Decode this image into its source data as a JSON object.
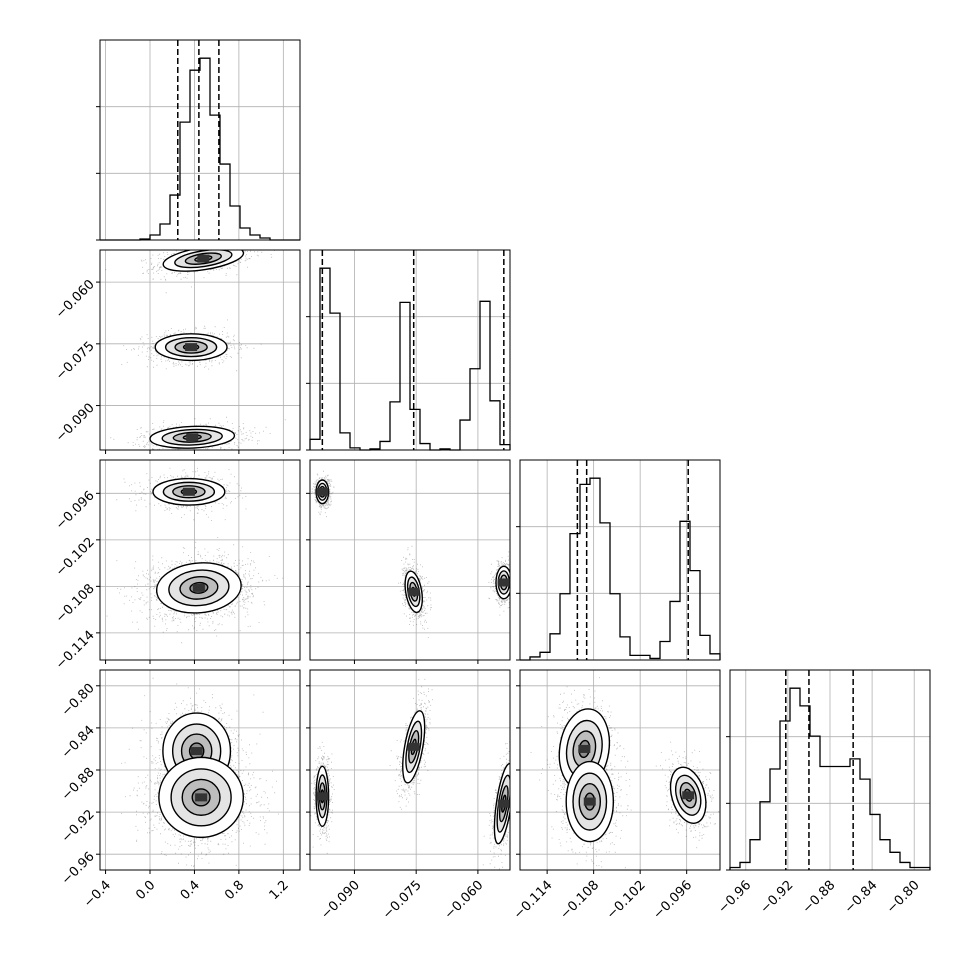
{
  "chart_data": {
    "type": "corner",
    "grid": true,
    "quantile_line_style": "dashed",
    "parameters": [
      {
        "range": [
          -0.45,
          1.35
        ],
        "ticks": [
          -0.4,
          0.0,
          0.4,
          0.8,
          1.2
        ],
        "tick_labels": [
          "−0.4",
          "0.0",
          "0.4",
          "0.8",
          "1.2"
        ],
        "quantiles": [
          0.25,
          0.44,
          0.62
        ],
        "histogram": {
          "edges_start": -0.45,
          "bin_width": 0.09,
          "counts": [
            0,
            0,
            0,
            0,
            1,
            5,
            16,
            45,
            118,
            170,
            182,
            125,
            76,
            34,
            12,
            5,
            2,
            0,
            0,
            0
          ]
        }
      },
      {
        "range": [
          -0.1008,
          -0.0522
        ],
        "ticks": [
          -0.09,
          -0.075,
          -0.06
        ],
        "tick_labels": [
          "−0.090",
          "−0.075",
          "−0.060"
        ],
        "quantiles": [
          -0.0978,
          -0.0756,
          -0.0537
        ],
        "histogram": {
          "edges_start": -0.1008,
          "bin_width": 0.00243,
          "counts": [
            10,
            170,
            128,
            16,
            2,
            0,
            1,
            8,
            45,
            138,
            38,
            6,
            0,
            1,
            0,
            28,
            76,
            139,
            46,
            5
          ]
        }
      },
      {
        "range": [
          -0.1175,
          -0.0917
        ],
        "ticks": [
          -0.114,
          -0.108,
          -0.102,
          -0.096
        ],
        "tick_labels": [
          "−0.114",
          "−0.108",
          "−0.102",
          "−0.096"
        ],
        "quantiles": [
          -0.1101,
          -0.1089,
          -0.0958
        ],
        "histogram": {
          "edges_start": -0.1175,
          "bin_width": 0.00129,
          "counts": [
            0,
            2,
            5,
            17,
            43,
            82,
            114,
            118,
            89,
            43,
            15,
            3,
            3,
            1,
            12,
            38,
            90,
            58,
            16,
            4
          ]
        }
      },
      {
        "range": [
          -0.975,
          -0.785
        ],
        "ticks": [
          -0.96,
          -0.92,
          -0.88,
          -0.84,
          -0.8
        ],
        "tick_labels": [
          "−0.96",
          "−0.92",
          "−0.88",
          "−0.84",
          "−0.80"
        ],
        "quantiles": [
          -0.922,
          -0.9,
          -0.858
        ],
        "histogram": {
          "edges_start": -0.975,
          "bin_width": 0.0095,
          "counts": [
            1,
            3,
            12,
            27,
            40,
            59,
            72,
            65,
            53,
            41,
            41,
            41,
            44,
            36,
            22,
            12,
            7,
            3,
            1,
            1
          ]
        }
      }
    ],
    "modes": {
      "p1_p2": [
        {
          "center": [
            0.48,
            -0.0543
          ],
          "sd": [
            0.19,
            0.0016
          ],
          "rho": 0.45,
          "weight": 0.33
        },
        {
          "center": [
            0.37,
            -0.0758
          ],
          "sd": [
            0.17,
            0.0017
          ],
          "rho": 0.0,
          "weight": 0.33
        },
        {
          "center": [
            0.38,
            -0.0977
          ],
          "sd": [
            0.2,
            0.0014
          ],
          "rho": 0.15,
          "weight": 0.34
        }
      ],
      "p2_p3": [
        {
          "center": [
            -0.0978,
            -0.0958
          ],
          "sd": [
            0.0008,
            0.0008
          ],
          "rho": 0.0,
          "weight": 0.3
        },
        {
          "center": [
            -0.0756,
            -0.1087
          ],
          "sd": [
            0.0011,
            0.0014
          ],
          "rho": -0.35,
          "weight": 0.37
        },
        {
          "center": [
            -0.0537,
            -0.1075
          ],
          "sd": [
            0.001,
            0.0011
          ],
          "rho": 0.0,
          "weight": 0.33
        }
      ],
      "p1_p3": [
        {
          "center": [
            0.35,
            -0.0958
          ],
          "sd": [
            0.17,
            0.0009
          ],
          "rho": 0.0,
          "weight": 0.3
        },
        {
          "center": [
            0.44,
            -0.1082
          ],
          "sd": [
            0.2,
            0.0017
          ],
          "rho": 0.1,
          "weight": 0.7
        }
      ],
      "p1_p4": [
        {
          "center": [
            0.42,
            -0.862
          ],
          "sd": [
            0.16,
            0.019
          ],
          "rho": 0.0,
          "weight": 0.35
        },
        {
          "center": [
            0.46,
            -0.906
          ],
          "sd": [
            0.2,
            0.02
          ],
          "rho": 0.0,
          "weight": 0.65
        }
      ],
      "p2_p4": [
        {
          "center": [
            -0.0978,
            -0.905
          ],
          "sd": [
            0.0008,
            0.015
          ],
          "rho": 0.0,
          "weight": 0.3
        },
        {
          "center": [
            -0.0756,
            -0.858
          ],
          "sd": [
            0.0014,
            0.018
          ],
          "rho": 0.55,
          "weight": 0.37
        },
        {
          "center": [
            -0.0537,
            -0.912
          ],
          "sd": [
            0.0012,
            0.02
          ],
          "rho": 0.6,
          "weight": 0.33
        }
      ],
      "p3_p4": [
        {
          "center": [
            -0.1092,
            -0.86
          ],
          "sd": [
            0.0017,
            0.02
          ],
          "rho": 0.15,
          "weight": 0.35
        },
        {
          "center": [
            -0.1085,
            -0.91
          ],
          "sd": [
            0.0016,
            0.02
          ],
          "rho": 0.0,
          "weight": 0.35
        },
        {
          "center": [
            -0.0958,
            -0.904
          ],
          "sd": [
            0.0012,
            0.014
          ],
          "rho": -0.3,
          "weight": 0.3
        }
      ]
    }
  }
}
